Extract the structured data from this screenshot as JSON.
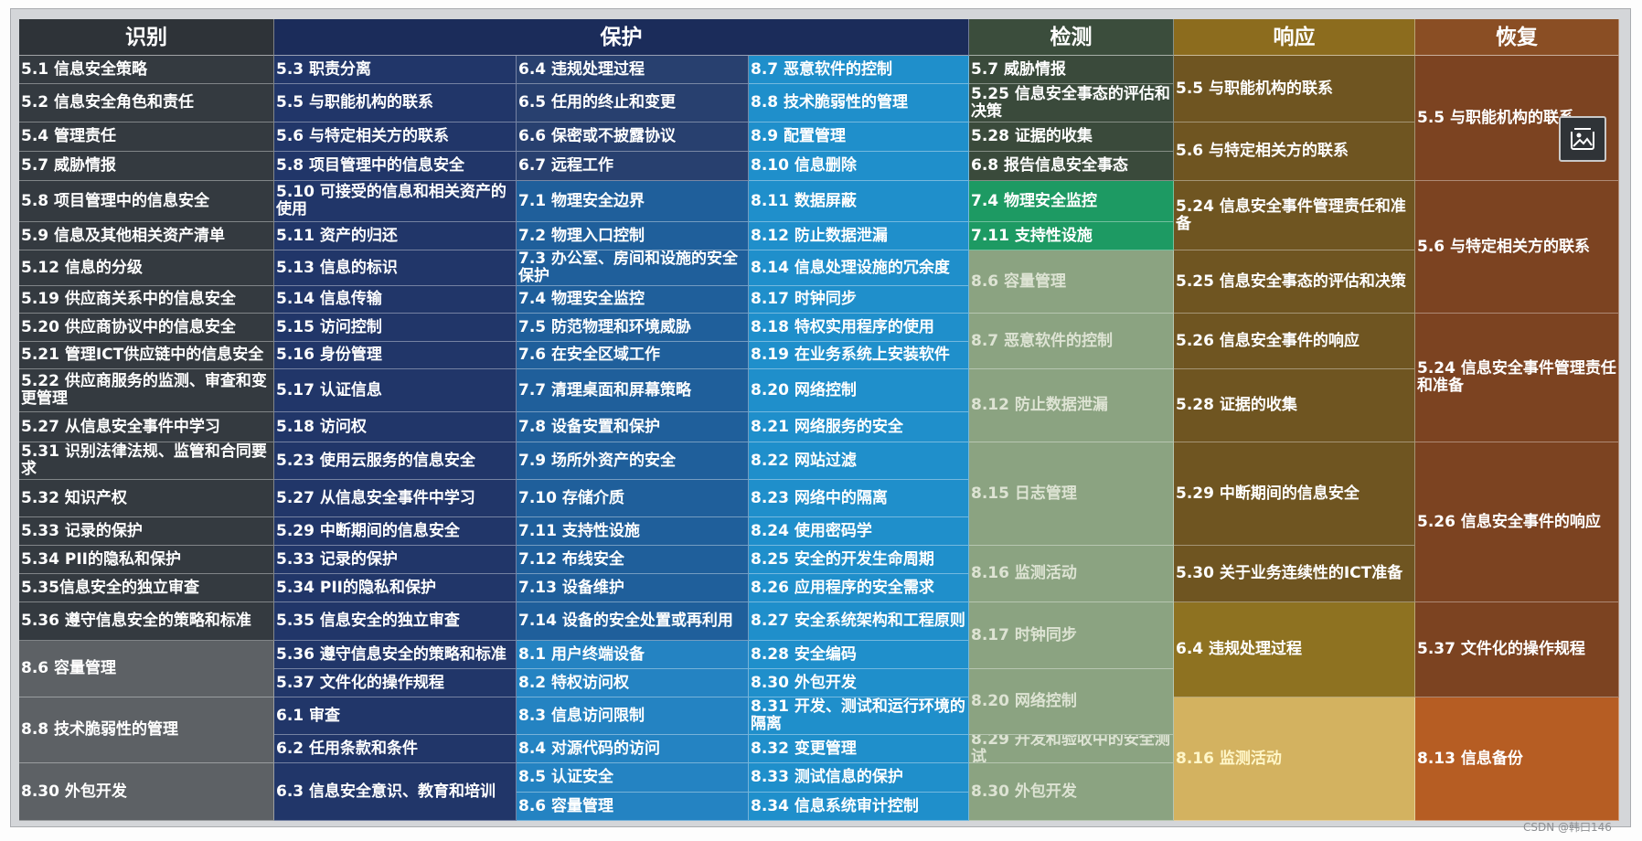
{
  "watermark": "CSDN @韩曰146",
  "headers": [
    "识别",
    "保护",
    "检测",
    "响应",
    "恢复"
  ],
  "identify": [
    "5.1 信息安全策略",
    "5.2 信息安全角色和责任",
    "5.4 管理责任",
    "5.7 威胁情报",
    "5.8 项目管理中的信息安全",
    "5.9 信息及其他相关资产清单",
    "5.12 信息的分级",
    "5.19 供应商关系中的信息安全",
    "5.20 供应商协议中的信息安全",
    "5.21 管理ICT供应链中的信息安全",
    "5.22 供应商服务的监测、审查和变更管理",
    "5.27 从信息安全事件中学习",
    "5.31 识别法律法规、监管和合同要求",
    "5.32 知识产权",
    "5.33 记录的保护",
    "5.34 PII的隐私和保护",
    "5.35信息安全的独立审查",
    "5.36 遵守信息安全的策略和标准",
    "8.6 容量管理",
    "8.8 技术脆弱性的管理",
    "8.30 外包开发"
  ],
  "protect_a": [
    "5.3 职责分离",
    "5.5 与职能机构的联系",
    "5.6 与特定相关方的联系",
    "5.8 项目管理中的信息安全",
    "5.10 可接受的信息和相关资产的使用",
    "5.11 资产的归还",
    "5.13 信息的标识",
    "5.14 信息传输",
    "5.15 访问控制",
    "5.16 身份管理",
    "5.17 认证信息",
    "5.18 访问权",
    "5.23 使用云服务的信息安全",
    "5.27 从信息安全事件中学习",
    "5.29 中断期间的信息安全",
    "5.33 记录的保护",
    "5.34 PII的隐私和保护",
    "5.35 信息安全的独立审查",
    "5.36 遵守信息安全的策略和标准",
    "5.37 文件化的操作规程",
    "6.1 审查",
    "6.2 任用条款和条件",
    "6.3 信息安全意识、教育和培训"
  ],
  "protect_b": [
    "6.4 违规处理过程",
    "6.5 任用的终止和变更",
    "6.6 保密或不披露协议",
    "6.7 远程工作",
    "7.1 物理安全边界",
    "7.2 物理入口控制",
    "7.3 办公室、房间和设施的安全保护",
    "7.4 物理安全监控",
    "7.5 防范物理和环境威胁",
    "7.6 在安全区域工作",
    "7.7 清理桌面和屏幕策略",
    "7.8 设备安置和保护",
    "7.9 场所外资产的安全",
    "7.10 存储介质",
    "7.11 支持性设施",
    "7.12 布线安全",
    "7.13 设备维护",
    "7.14  设备的安全处置或再利用",
    "8.1 用户终端设备",
    "8.2 特权访问权",
    "8.3 信息访问限制",
    "8.4 对源代码的访问",
    "8.5 认证安全",
    "8.6 容量管理"
  ],
  "protect_c": [
    "8.7 恶意软件的控制",
    "8.8 技术脆弱性的管理",
    "8.9 配置管理",
    "8.10 信息删除",
    "8.11 数据屏蔽",
    "8.12 防止数据泄漏",
    "8.14 信息处理设施的冗余度",
    "8.17 时钟同步",
    "8.18 特权实用程序的使用",
    "8.19 在业务系统上安装软件",
    "8.20 网络控制",
    "8.21 网络服务的安全",
    "8.22 网站过滤",
    "8.23 网络中的隔离",
    "8.24 使用密码学",
    "8.25 安全的开发生命周期",
    "8.26 应用程序的安全需求",
    "8.27 安全系统架构和工程原则",
    "8.28 安全编码",
    "8.30 外包开发",
    "8.31 开发、测试和运行环境的隔离",
    "8.32 变更管理",
    "8.33 测试信息的保护",
    "8.34 信息系统审计控制"
  ],
  "detect": [
    "5.7 威胁情报",
    "5.25 信息安全事态的评估和决策",
    "5.28 证据的收集",
    "6.8 报告信息安全事态",
    "7.4 物理安全监控",
    "7.11 支持性设施",
    "8.6 容量管理",
    "8.7 恶意软件的控制",
    "8.12 防止数据泄漏",
    "8.15 日志管理",
    "8.16 监测活动",
    "8.17 时钟同步",
    "8.20 网络控制",
    "8.29 开发和验收中的安全测试",
    "8.30 外包开发"
  ],
  "respond": [
    "5.5 与职能机构的联系",
    "5.6 与特定相关方的联系",
    "5.24 信息安全事件管理责任和准备",
    "5.25 信息安全事态的评估和决策",
    "5.26 信息安全事件的响应",
    "5.28 证据的收集",
    "5.29 中断期间的信息安全",
    "5.30 关于业务连续性的ICT准备",
    "6.4 违规处理过程",
    "8.16 监测活动"
  ],
  "recover": [
    "5.5 与职能机构的联系",
    "5.6 与特定相关方的联系",
    "5.24 信息安全事件管理责任和准备",
    "5.26 信息安全事件的响应",
    "5.37 文件化的操作规程",
    "8.13 信息备份"
  ],
  "colors": {
    "identify_header": "#2e3338",
    "identify_body": "#343a40",
    "identify_alt": "#5d6165",
    "protect_header": "#1b2c5a",
    "protect_a": "#213669",
    "protect_b_dark": "#28406f",
    "protect_b_light": "#1f5f9b",
    "protect_b_lighter": "#2483c2",
    "protect_c": "#1f8fcb",
    "detect_header": "#3b4d3c",
    "detect_dark": "#3a4a3b",
    "detect_green": "#1d9a63",
    "detect_sage": "#8ba381",
    "respond_header": "#8c6c1e",
    "respond_body": "#6f5521",
    "respond_gold": "#8e7221",
    "respond_light": "#d3b260",
    "recover_header": "#8a4e24",
    "recover_body": "#7c4321",
    "recover_light": "#b65d23"
  }
}
